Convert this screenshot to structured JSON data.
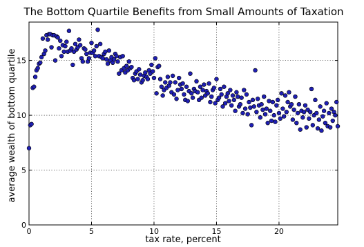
{
  "chart_data": {
    "type": "scatter",
    "title": "The Bottom Quartile Benefits from Small Amounts of Taxation",
    "xlabel": "tax rate, percent",
    "ylabel": "average wealth of bottom quartile",
    "xlim": [
      0,
      24.7
    ],
    "ylim": [
      0,
      18.5
    ],
    "xticks": [
      0,
      5,
      10,
      15,
      20
    ],
    "yticks": [
      0,
      5,
      10,
      15
    ],
    "grid": true,
    "marker_color": "#1f1fb4",
    "series": [
      {
        "points": [
          [
            0.0,
            7.0
          ],
          [
            0.1,
            9.1
          ],
          [
            0.2,
            9.2
          ],
          [
            0.3,
            12.5
          ],
          [
            0.4,
            12.6
          ],
          [
            0.5,
            13.5
          ],
          [
            0.6,
            14.1
          ],
          [
            0.7,
            14.3
          ],
          [
            0.8,
            14.7
          ],
          [
            0.9,
            14.8
          ],
          [
            1.0,
            15.3
          ],
          [
            1.1,
            17.0
          ],
          [
            1.2,
            15.6
          ],
          [
            1.3,
            15.9
          ],
          [
            1.4,
            17.3
          ],
          [
            1.5,
            16.9
          ],
          [
            1.6,
            17.4
          ],
          [
            1.7,
            17.4
          ],
          [
            1.8,
            16.2
          ],
          [
            1.9,
            17.3
          ],
          [
            2.0,
            17.3
          ],
          [
            2.1,
            15.0
          ],
          [
            2.2,
            17.2
          ],
          [
            2.3,
            17.1
          ],
          [
            2.4,
            16.1
          ],
          [
            2.5,
            16.8
          ],
          [
            2.6,
            15.4
          ],
          [
            2.7,
            16.4
          ],
          [
            2.8,
            15.8
          ],
          [
            2.9,
            16.3
          ],
          [
            3.0,
            16.7
          ],
          [
            3.1,
            15.8
          ],
          [
            3.2,
            17.7
          ],
          [
            3.3,
            15.9
          ],
          [
            3.4,
            16.1
          ],
          [
            3.5,
            14.6
          ],
          [
            3.6,
            15.8
          ],
          [
            3.7,
            16.5
          ],
          [
            3.8,
            16.0
          ],
          [
            3.9,
            16.2
          ],
          [
            4.0,
            16.9
          ],
          [
            4.1,
            16.4
          ],
          [
            4.2,
            15.2
          ],
          [
            4.3,
            14.9
          ],
          [
            4.4,
            16.1
          ],
          [
            4.5,
            16.0
          ],
          [
            4.6,
            15.6
          ],
          [
            4.7,
            14.9
          ],
          [
            4.8,
            15.2
          ],
          [
            4.9,
            15.7
          ],
          [
            5.0,
            16.6
          ],
          [
            5.1,
            15.7
          ],
          [
            5.2,
            15.9
          ],
          [
            5.3,
            15.4
          ],
          [
            5.4,
            16.3
          ],
          [
            5.5,
            17.8
          ],
          [
            5.6,
            15.4
          ],
          [
            5.7,
            16.5
          ],
          [
            5.8,
            15.3
          ],
          [
            5.9,
            15.2
          ],
          [
            6.0,
            15.6
          ],
          [
            6.1,
            15.8
          ],
          [
            6.2,
            15.1
          ],
          [
            6.3,
            14.7
          ],
          [
            6.4,
            15.9
          ],
          [
            6.5,
            15.0
          ],
          [
            6.6,
            15.3
          ],
          [
            6.7,
            14.8
          ],
          [
            6.8,
            15.1
          ],
          [
            6.9,
            15.6
          ],
          [
            7.0,
            15.4
          ],
          [
            7.1,
            14.9
          ],
          [
            7.2,
            13.8
          ],
          [
            7.3,
            15.3
          ],
          [
            7.4,
            14.1
          ],
          [
            7.5,
            15.4
          ],
          [
            7.6,
            14.3
          ],
          [
            7.7,
            13.9
          ],
          [
            7.8,
            14.5
          ],
          [
            7.9,
            14.1
          ],
          [
            8.0,
            14.9
          ],
          [
            8.1,
            14.3
          ],
          [
            8.2,
            14.4
          ],
          [
            8.3,
            13.4
          ],
          [
            8.4,
            13.2
          ],
          [
            8.5,
            13.8
          ],
          [
            8.6,
            14.0
          ],
          [
            8.7,
            13.3
          ],
          [
            8.8,
            14.2
          ],
          [
            8.9,
            13.7
          ],
          [
            9.0,
            13.0
          ],
          [
            9.1,
            13.2
          ],
          [
            9.2,
            13.6
          ],
          [
            9.3,
            13.9
          ],
          [
            9.4,
            13.5
          ],
          [
            9.5,
            13.3
          ],
          [
            9.6,
            14.1
          ],
          [
            9.7,
            13.8
          ],
          [
            9.8,
            14.6
          ],
          [
            9.9,
            14.0
          ],
          [
            10.0,
            13.4
          ],
          [
            10.1,
            15.2
          ],
          [
            10.2,
            12.0
          ],
          [
            10.3,
            14.4
          ],
          [
            10.4,
            14.5
          ],
          [
            10.5,
            13.3
          ],
          [
            10.6,
            12.6
          ],
          [
            10.7,
            11.8
          ],
          [
            10.8,
            12.3
          ],
          [
            10.9,
            13.0
          ],
          [
            11.0,
            12.5
          ],
          [
            11.1,
            13.5
          ],
          [
            11.2,
            12.7
          ],
          [
            11.3,
            13.0
          ],
          [
            11.4,
            12.1
          ],
          [
            11.5,
            13.6
          ],
          [
            11.6,
            11.9
          ],
          [
            11.7,
            13.0
          ],
          [
            11.8,
            11.5
          ],
          [
            11.9,
            12.3
          ],
          [
            12.0,
            13.4
          ],
          [
            12.1,
            12.8
          ],
          [
            12.2,
            12.4
          ],
          [
            12.3,
            12.9
          ],
          [
            12.4,
            11.9
          ],
          [
            12.5,
            11.4
          ],
          [
            12.6,
            12.6
          ],
          [
            12.7,
            11.3
          ],
          [
            12.8,
            12.2
          ],
          [
            12.9,
            13.8
          ],
          [
            13.0,
            12.0
          ],
          [
            13.1,
            11.6
          ],
          [
            13.2,
            12.4
          ],
          [
            13.3,
            12.2
          ],
          [
            13.4,
            13.1
          ],
          [
            13.5,
            12.1
          ],
          [
            13.6,
            11.4
          ],
          [
            13.7,
            12.6
          ],
          [
            13.8,
            11.6
          ],
          [
            13.9,
            12.3
          ],
          [
            14.0,
            12.8
          ],
          [
            14.1,
            11.8
          ],
          [
            14.2,
            12.2
          ],
          [
            14.3,
            12.0
          ],
          [
            14.4,
            12.9
          ],
          [
            14.5,
            11.2
          ],
          [
            14.6,
            11.7
          ],
          [
            14.7,
            12.3
          ],
          [
            14.8,
            12.5
          ],
          [
            14.9,
            11.1
          ],
          [
            15.0,
            13.3
          ],
          [
            15.1,
            11.4
          ],
          [
            15.2,
            11.6
          ],
          [
            15.3,
            12.4
          ],
          [
            15.4,
            11.9
          ],
          [
            15.5,
            10.8
          ],
          [
            15.6,
            12.6
          ],
          [
            15.7,
            11.1
          ],
          [
            15.8,
            11.7
          ],
          [
            15.9,
            12.0
          ],
          [
            16.0,
            11.3
          ],
          [
            16.1,
            12.3
          ],
          [
            16.2,
            10.9
          ],
          [
            16.3,
            11.8
          ],
          [
            16.4,
            11.4
          ],
          [
            16.5,
            10.4
          ],
          [
            16.6,
            12.1
          ],
          [
            16.7,
            11.7
          ],
          [
            16.8,
            10.8
          ],
          [
            16.9,
            11.0
          ],
          [
            17.0,
            11.6
          ],
          [
            17.1,
            10.2
          ],
          [
            17.2,
            12.3
          ],
          [
            17.3,
            10.6
          ],
          [
            17.4,
            11.9
          ],
          [
            17.5,
            10.1
          ],
          [
            17.6,
            11.2
          ],
          [
            17.7,
            10.7
          ],
          [
            17.8,
            9.1
          ],
          [
            17.9,
            11.4
          ],
          [
            18.0,
            10.8
          ],
          [
            18.1,
            14.1
          ],
          [
            18.2,
            10.3
          ],
          [
            18.3,
            11.5
          ],
          [
            18.4,
            10.9
          ],
          [
            18.5,
            9.8
          ],
          [
            18.6,
            11.0
          ],
          [
            18.7,
            10.5
          ],
          [
            18.8,
            11.7
          ],
          [
            18.9,
            10.1
          ],
          [
            19.0,
            10.6
          ],
          [
            19.1,
            9.3
          ],
          [
            19.2,
            11.3
          ],
          [
            19.3,
            10.4
          ],
          [
            19.4,
            9.5
          ],
          [
            19.5,
            11.2
          ],
          [
            19.6,
            10.0
          ],
          [
            19.7,
            9.4
          ],
          [
            19.8,
            10.9
          ],
          [
            19.9,
            11.4
          ],
          [
            20.0,
            10.2
          ],
          [
            20.1,
            9.7
          ],
          [
            20.2,
            12.0
          ],
          [
            20.3,
            10.6
          ],
          [
            20.4,
            9.9
          ],
          [
            20.5,
            11.8
          ],
          [
            20.6,
            10.3
          ],
          [
            20.7,
            11.2
          ],
          [
            20.8,
            12.1
          ],
          [
            20.9,
            10.8
          ],
          [
            21.0,
            11.0
          ],
          [
            21.1,
            9.6
          ],
          [
            21.2,
            10.5
          ],
          [
            21.3,
            11.7
          ],
          [
            21.4,
            9.3
          ],
          [
            21.5,
            10.2
          ],
          [
            21.6,
            11.0
          ],
          [
            21.7,
            8.7
          ],
          [
            21.8,
            10.4
          ],
          [
            21.9,
            9.8
          ],
          [
            22.0,
            10.3
          ],
          [
            22.1,
            10.9
          ],
          [
            22.2,
            8.9
          ],
          [
            22.3,
            10.5
          ],
          [
            22.4,
            9.7
          ],
          [
            22.5,
            10.3
          ],
          [
            22.6,
            12.4
          ],
          [
            22.7,
            9.1
          ],
          [
            22.8,
            10.0
          ],
          [
            22.9,
            11.4
          ],
          [
            23.0,
            10.2
          ],
          [
            23.1,
            8.8
          ],
          [
            23.2,
            9.6
          ],
          [
            23.3,
            10.8
          ],
          [
            23.4,
            8.6
          ],
          [
            23.5,
            9.9
          ],
          [
            23.6,
            10.4
          ],
          [
            23.7,
            9.3
          ],
          [
            23.8,
            11.1
          ],
          [
            23.9,
            9.0
          ],
          [
            24.0,
            10.2
          ],
          [
            24.1,
            8.9
          ],
          [
            24.2,
            10.6
          ],
          [
            24.3,
            9.5
          ],
          [
            24.4,
            10.3
          ],
          [
            24.5,
            10.0
          ],
          [
            24.6,
            11.2
          ],
          [
            24.7,
            9.0
          ]
        ]
      }
    ]
  }
}
